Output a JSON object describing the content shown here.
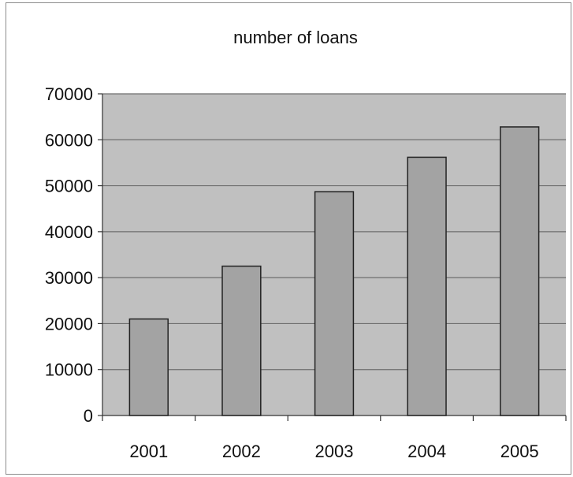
{
  "chart_data": {
    "type": "bar",
    "title": "number of loans",
    "xlabel": "",
    "ylabel": "",
    "categories": [
      "2001",
      "2002",
      "2003",
      "2004",
      "2005"
    ],
    "values": [
      21000,
      32500,
      48700,
      56200,
      62800
    ],
    "ylim": [
      0,
      70000
    ],
    "y_ticks": [
      "0",
      "10000",
      "20000",
      "30000",
      "40000",
      "50000",
      "60000",
      "70000"
    ],
    "grid": true,
    "legend": "none",
    "colors": {
      "plot_background": "#c0c0c0",
      "bar_fill": "#a3a3a3",
      "bar_stroke": "#222222",
      "gridline": "#6e6e6e"
    }
  }
}
